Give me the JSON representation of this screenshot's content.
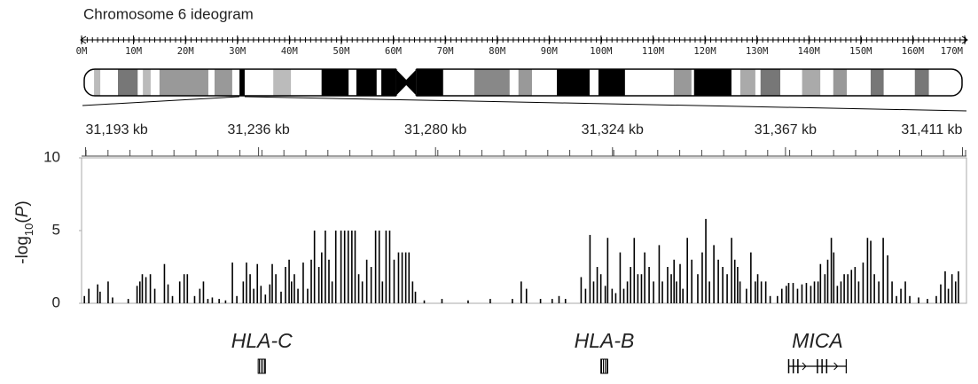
{
  "chart_data": [
    {
      "type": "ideogram",
      "title": "Chromosome 6 ideogram",
      "xlim": [
        0,
        170
      ],
      "xticks": [
        {
          "value": 0,
          "label": "0M"
        },
        {
          "value": 10,
          "label": "10M"
        },
        {
          "value": 20,
          "label": "20M"
        },
        {
          "value": 30,
          "label": "30M"
        },
        {
          "value": 40,
          "label": "40M"
        },
        {
          "value": 50,
          "label": "50M"
        },
        {
          "value": 60,
          "label": "60M"
        },
        {
          "value": 70,
          "label": "70M"
        },
        {
          "value": 80,
          "label": "80M"
        },
        {
          "value": 90,
          "label": "90M"
        },
        {
          "value": 100,
          "label": "100M"
        },
        {
          "value": 110,
          "label": "110M"
        },
        {
          "value": 120,
          "label": "120M"
        },
        {
          "value": 130,
          "label": "130M"
        },
        {
          "value": 140,
          "label": "140M"
        },
        {
          "value": 150,
          "label": "150M"
        },
        {
          "value": 160,
          "label": "160M"
        },
        {
          "value": 170,
          "label": "170M"
        }
      ],
      "bands": [
        {
          "start": 2.4,
          "end": 3.6,
          "color": "#bbbbbb"
        },
        {
          "start": 7.0,
          "end": 10.8,
          "color": "#777777"
        },
        {
          "start": 11.8,
          "end": 13.3,
          "color": "#bbbbbb"
        },
        {
          "start": 15.0,
          "end": 24.4,
          "color": "#999999"
        },
        {
          "start": 25.6,
          "end": 29.0,
          "color": "#999999"
        },
        {
          "start": 30.4,
          "end": 31.4,
          "color": "#000000"
        },
        {
          "start": 36.9,
          "end": 40.3,
          "color": "#bbbbbb"
        },
        {
          "start": 46.2,
          "end": 51.4,
          "color": "#000000"
        },
        {
          "start": 52.9,
          "end": 56.8,
          "color": "#000000"
        },
        {
          "start": 57.7,
          "end": 60.5,
          "color": "#000000"
        },
        {
          "start": 64.5,
          "end": 69.6,
          "color": "#000000"
        },
        {
          "start": 75.6,
          "end": 82.4,
          "color": "#888888"
        },
        {
          "start": 84.1,
          "end": 86.7,
          "color": "#999999"
        },
        {
          "start": 91.5,
          "end": 97.8,
          "color": "#000000"
        },
        {
          "start": 99.5,
          "end": 104.6,
          "color": "#000000"
        },
        {
          "start": 114.0,
          "end": 117.4,
          "color": "#999999"
        },
        {
          "start": 117.9,
          "end": 125.1,
          "color": "#000000"
        },
        {
          "start": 126.8,
          "end": 129.7,
          "color": "#aaaaaa"
        },
        {
          "start": 130.7,
          "end": 134.5,
          "color": "#777777"
        },
        {
          "start": 138.7,
          "end": 142.2,
          "color": "#aaaaaa"
        },
        {
          "start": 144.7,
          "end": 147.3,
          "color": "#999999"
        },
        {
          "start": 151.9,
          "end": 154.4,
          "color": "#777777"
        },
        {
          "start": 160.4,
          "end": 163.1,
          "color": "#777777"
        }
      ],
      "centromere": [
        60.5,
        64.5
      ]
    },
    {
      "type": "stem",
      "y_label": [
        "-log",
        "10",
        "(",
        "P",
        ")"
      ],
      "xlim": [
        31192,
        31412
      ],
      "xticks": [
        {
          "value": 31193,
          "label": "31,193 kb"
        },
        {
          "value": 31236,
          "label": "31,236 kb"
        },
        {
          "value": 31280,
          "label": "31,280 kb"
        },
        {
          "value": 31324,
          "label": "31,324 kb"
        },
        {
          "value": 31367,
          "label": "31,367 kb"
        },
        {
          "value": 31411,
          "label": "31,411 kb"
        }
      ],
      "ylim": [
        0,
        10
      ],
      "yticks": [
        0,
        5,
        10
      ],
      "color": "#000000",
      "x": [
        31192.7,
        31193.8,
        31196,
        31196.6,
        31198.6,
        31199.7,
        31203.6,
        31205.8,
        31206.5,
        31207.1,
        31208,
        31209.1,
        31210.2,
        31212.6,
        31213.5,
        31214.6,
        31216.4,
        31217.5,
        31218.3,
        31220.1,
        31221.4,
        31222.3,
        31223.4,
        31224.5,
        31226.2,
        31227.8,
        31229.5,
        31230.6,
        31232.2,
        31233,
        31233.9,
        31234.8,
        31235.7,
        31236.6,
        31237.7,
        31238.8,
        31239.4,
        31240.3,
        31241.6,
        31242.7,
        31243.6,
        31244.2,
        31244.9,
        31245.8,
        31247.1,
        31248.2,
        31249.1,
        31249.9,
        31251,
        31251.7,
        31252.6,
        31253.5,
        31254.3,
        31255.2,
        31256.5,
        31257.4,
        31258.3,
        31259.2,
        31260,
        31260.9,
        31261.8,
        31262.9,
        31264,
        31265.1,
        31266,
        31266.8,
        31267.7,
        31268.6,
        31269.7,
        31270.8,
        31271.7,
        31272.6,
        31273.4,
        31274.3,
        31275,
        31277.2,
        31281.6,
        31288.1,
        31293.6,
        31299.1,
        31301.3,
        31302.6,
        31306.1,
        31309,
        31310.7,
        31312.3,
        31316.2,
        31317.3,
        31318.4,
        31319.3,
        31320.2,
        31321.1,
        31322.2,
        31322.8,
        31323.9,
        31324.8,
        31325.9,
        31326.8,
        31327.7,
        31328.5,
        31329.4,
        31330.3,
        31331.2,
        31332,
        31333.1,
        31334.2,
        31335.6,
        31336.4,
        31337.7,
        31338.6,
        31339.3,
        31339.9,
        31340.8,
        31341.5,
        31342.6,
        31343.7,
        31345.2,
        31346.3,
        31347.2,
        31348.1,
        31349.2,
        31350.3,
        31351.4,
        31352.5,
        31353.6,
        31354.4,
        31355.1,
        31355.7,
        31357.3,
        31358.4,
        31359.5,
        31360.1,
        31361,
        31362.1,
        31363.2,
        31365,
        31366.1,
        31367.2,
        31367.8,
        31368.9,
        31370,
        31371.1,
        31372.2,
        31373.3,
        31374.2,
        31375.1,
        31375.7,
        31376.8,
        31377.5,
        31378.4,
        31379,
        31379.9,
        31380.8,
        31381.6,
        31382.5,
        31383.4,
        31384.3,
        31385.2,
        31386.3,
        31387.4,
        31388.2,
        31389.1,
        31390.2,
        31391.3,
        31392.4,
        31393.5,
        31394.6,
        31395.7,
        31396.8,
        31397.9,
        31400.1,
        31402.3,
        31404.5,
        31405.6,
        31406.7,
        31407.5,
        31408.4,
        31409.3,
        31410
      ],
      "values": [
        0.5,
        1.0,
        1.3,
        0.8,
        1.5,
        0.4,
        0.3,
        1.2,
        1.5,
        2.0,
        1.8,
        2.0,
        1.0,
        2.7,
        1.3,
        0.5,
        1.5,
        2.0,
        2.0,
        0.5,
        1.0,
        1.5,
        0.3,
        0.4,
        0.3,
        0.2,
        2.8,
        0.5,
        1.5,
        2.8,
        2.0,
        1.0,
        2.7,
        1.2,
        0.6,
        1.3,
        2.7,
        2.0,
        0.8,
        2.5,
        3.0,
        1.5,
        2.0,
        1.0,
        2.8,
        1.0,
        3.0,
        5.0,
        2.5,
        3.5,
        5.0,
        3.0,
        1.5,
        5.0,
        5.0,
        5.0,
        5.0,
        5.0,
        5.0,
        2.0,
        1.5,
        3.0,
        2.5,
        5.0,
        5.0,
        1.5,
        5.0,
        5.0,
        3.0,
        3.5,
        3.5,
        3.5,
        3.5,
        1.5,
        0.8,
        0.2,
        0.3,
        0.2,
        0.3,
        0.3,
        1.5,
        1.0,
        0.3,
        0.3,
        0.5,
        0.3,
        1.8,
        1.0,
        4.7,
        1.5,
        2.5,
        2.0,
        1.2,
        4.5,
        1.0,
        0.7,
        3.5,
        1.0,
        1.5,
        2.5,
        4.5,
        2.0,
        2.0,
        3.5,
        2.5,
        1.5,
        4.0,
        1.5,
        2.5,
        2.0,
        3.0,
        1.5,
        2.7,
        1.0,
        4.5,
        3.0,
        2.0,
        3.5,
        5.8,
        1.5,
        4.0,
        3.0,
        2.5,
        2.0,
        4.5,
        3.0,
        2.5,
        1.5,
        1.0,
        3.5,
        1.5,
        2.0,
        1.5,
        1.5,
        0.5,
        0.5,
        1.0,
        1.2,
        1.4,
        1.4,
        1.0,
        1.3,
        1.4,
        1.2,
        1.5,
        1.5,
        2.7,
        2.0,
        3.0,
        4.5,
        3.5,
        1.2,
        1.5,
        2.0,
        2.0,
        2.3,
        2.5,
        1.5,
        2.8,
        4.5,
        4.3,
        2.0,
        1.5,
        4.5,
        3.3,
        1.5,
        0.5,
        1.0,
        1.5,
        0.5,
        0.4,
        0.3,
        0.5,
        1.3,
        2.2,
        1.0,
        2.0,
        1.5,
        2.2
      ],
      "genes": [
        {
          "name": "HLA-C",
          "start": 31235.9,
          "end": 31237.7
        },
        {
          "name": "HLA-B",
          "start": 31321.1,
          "end": 31322.8
        },
        {
          "name": "MICA",
          "start": 31367.8,
          "end": 31382.1
        }
      ]
    }
  ]
}
